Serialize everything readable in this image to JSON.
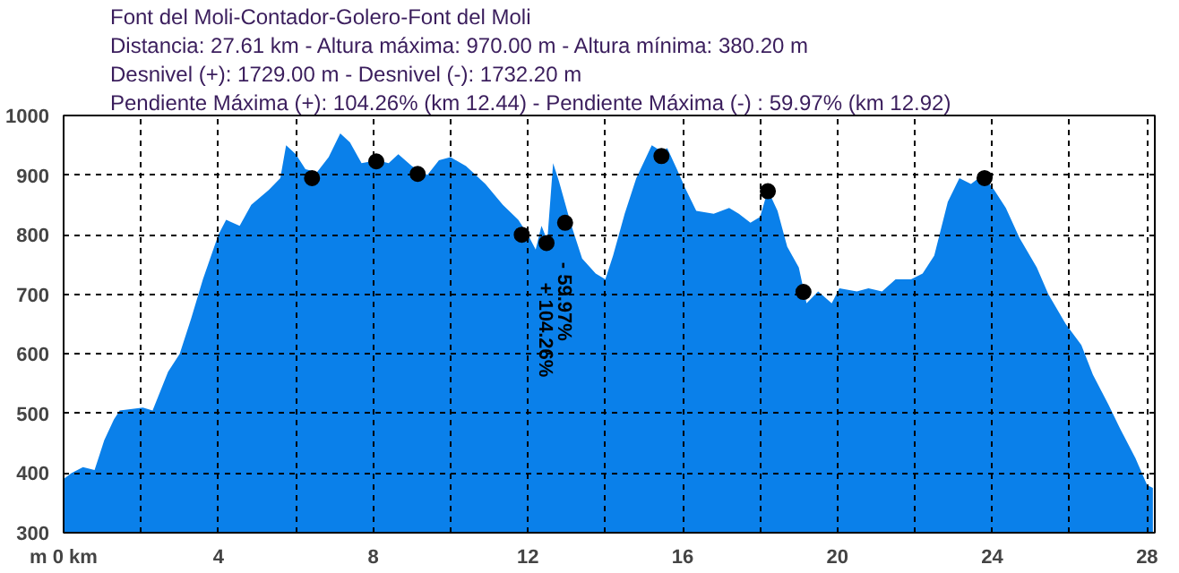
{
  "chart_data": {
    "type": "area",
    "title": "Font del Moli-Contador-Golero-Font del Moli",
    "annotations": [
      "Distancia: 27.61 km - Altura máxima: 970.00 m - Altura mínima: 380.20 m",
      "Desnivel (+): 1729.00 m - Desnivel (-): 1732.20 m",
      "Pendiente Máxima (+): 104.26% (km 12.44) - Pendiente Máxima (-) : 59.97% (km 12.92)",
      {
        "text": "+ 104.26%",
        "x": 12.44,
        "y": 786
      },
      {
        "text": "- 59.97%",
        "x": 12.92,
        "y": 820
      }
    ],
    "xlim": [
      0,
      28.2
    ],
    "ylim": [
      300,
      1000
    ],
    "xticks": [
      {
        "value": 0,
        "label": "m 0 km"
      },
      {
        "value": 2,
        "label": null
      },
      4,
      {
        "value": 6,
        "label": null
      },
      8,
      {
        "value": 10,
        "label": null
      },
      12,
      {
        "value": 14,
        "label": null
      },
      16,
      {
        "value": 18,
        "label": null
      },
      20,
      {
        "value": 22,
        "label": null
      },
      24,
      {
        "value": 26,
        "label": null
      },
      28
    ],
    "yticks": [
      300,
      400,
      500,
      600,
      700,
      800,
      900,
      1000
    ],
    "grid": true,
    "series": [
      {
        "color": "#0a80ea",
        "x": [
          0,
          0.2,
          0.5,
          0.8,
          1.05,
          1.3,
          1.45,
          2.05,
          2.3,
          2.7,
          3.0,
          3.3,
          3.6,
          4.0,
          4.2,
          4.55,
          4.85,
          5.3,
          5.6,
          5.75,
          6.0,
          6.25,
          6.55,
          6.85,
          7.15,
          7.4,
          7.7,
          8.1,
          8.4,
          8.65,
          9.0,
          9.4,
          9.7,
          10.0,
          10.4,
          10.9,
          11.35,
          11.75,
          12.0,
          12.2,
          12.35,
          12.5,
          12.65,
          12.8,
          13.1,
          13.4,
          13.75,
          14.0,
          14.2,
          14.5,
          14.8,
          15.2,
          15.45,
          15.6,
          15.85,
          16.05,
          16.35,
          16.8,
          17.2,
          17.45,
          17.75,
          18.0,
          18.2,
          18.45,
          18.7,
          19.0,
          19.2,
          19.5,
          19.85,
          20.05,
          20.5,
          20.8,
          21.15,
          21.5,
          21.9,
          22.2,
          22.5,
          22.85,
          23.15,
          23.45,
          23.75,
          24.05,
          24.35,
          24.7,
          25.15,
          25.45,
          25.9,
          26.3,
          26.6,
          27.0,
          27.3,
          27.7,
          28.0,
          28.15
        ],
        "values": [
          390,
          400,
          410,
          405,
          455,
          490,
          505,
          510,
          505,
          570,
          600,
          660,
          725,
          800,
          825,
          815,
          850,
          875,
          895,
          950,
          935,
          910,
          905,
          930,
          970,
          955,
          920,
          925,
          920,
          935,
          915,
          900,
          925,
          930,
          915,
          885,
          850,
          825,
          800,
          775,
          815,
          790,
          920,
          890,
          820,
          760,
          735,
          725,
          765,
          835,
          895,
          950,
          940,
          945,
          910,
          880,
          840,
          835,
          845,
          835,
          820,
          830,
          875,
          840,
          780,
          745,
          685,
          705,
          685,
          710,
          705,
          710,
          705,
          725,
          725,
          735,
          765,
          855,
          895,
          885,
          900,
          875,
          845,
          795,
          745,
          700,
          650,
          615,
          565,
          515,
          475,
          425,
          380,
          375
        ]
      },
      {
        "type": "scatter",
        "color": "#000000",
        "marker": "circle",
        "x": [
          6.42,
          8.08,
          9.15,
          11.84,
          12.48,
          12.96,
          15.45,
          18.2,
          19.12,
          23.8
        ],
        "values": [
          895,
          923,
          902,
          800,
          786,
          820,
          932,
          873,
          704,
          895
        ]
      }
    ]
  }
}
